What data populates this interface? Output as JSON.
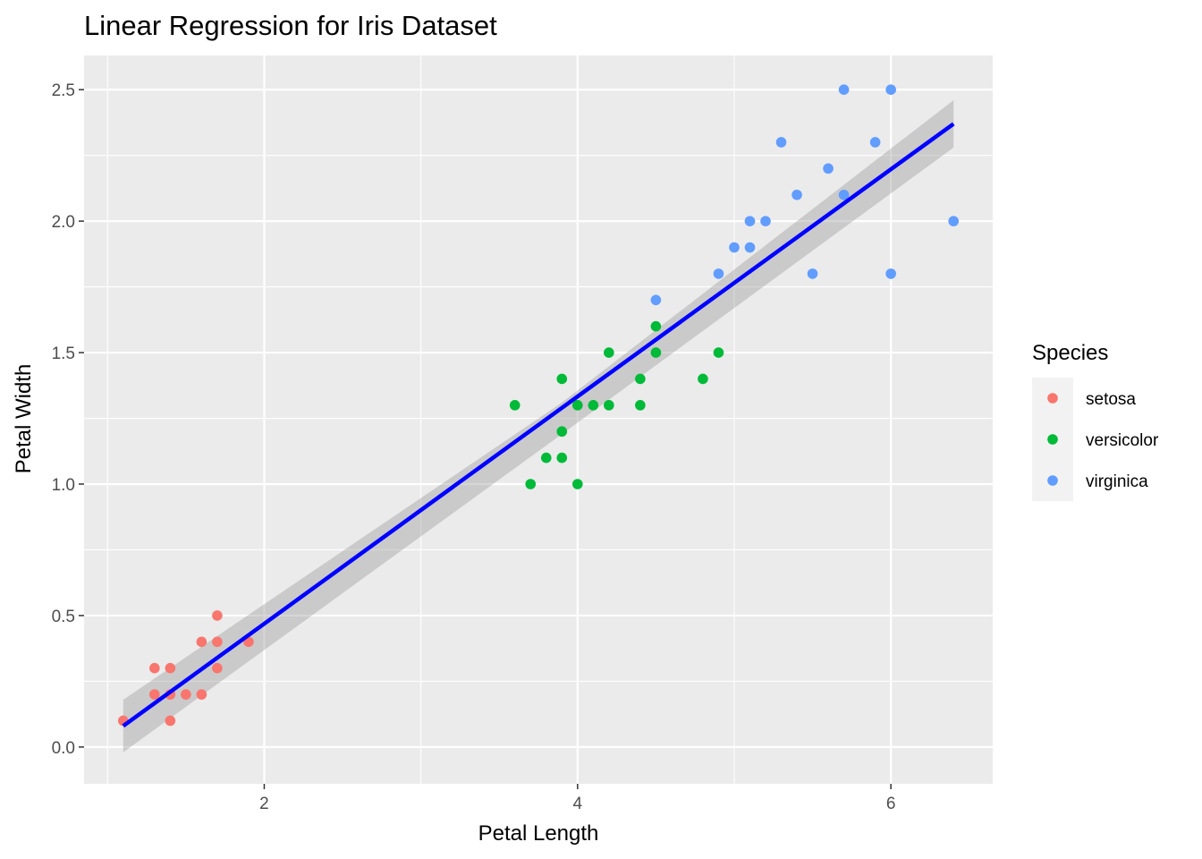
{
  "chart_data": {
    "type": "scatter",
    "title": "Linear Regression for Iris Dataset",
    "xlabel": "Petal Length",
    "ylabel": "Petal Width",
    "xlim": [
      0.85,
      6.65
    ],
    "ylim": [
      -0.14,
      2.63
    ],
    "x_ticks": [
      2,
      4,
      6
    ],
    "x_tick_labels": [
      "2",
      "4",
      "6"
    ],
    "y_ticks": [
      0.0,
      0.5,
      1.0,
      1.5,
      2.0,
      2.5
    ],
    "y_tick_labels": [
      "0.0",
      "0.5",
      "1.0",
      "1.5",
      "2.0",
      "2.5"
    ],
    "x_minor_ticks": [
      1,
      3,
      5
    ],
    "y_minor_ticks": [
      0.25,
      0.75,
      1.25,
      1.75,
      2.25
    ],
    "grid": true,
    "legend": {
      "title": "Species",
      "position": "right"
    },
    "series": [
      {
        "name": "setosa",
        "color": "#F8766D",
        "points": [
          [
            1.1,
            0.1
          ],
          [
            1.3,
            0.3
          ],
          [
            1.3,
            0.2
          ],
          [
            1.4,
            0.3
          ],
          [
            1.4,
            0.2
          ],
          [
            1.4,
            0.1
          ],
          [
            1.5,
            0.2
          ],
          [
            1.6,
            0.4
          ],
          [
            1.6,
            0.2
          ],
          [
            1.7,
            0.5
          ],
          [
            1.7,
            0.4
          ],
          [
            1.7,
            0.3
          ],
          [
            1.9,
            0.4
          ]
        ]
      },
      {
        "name": "versicolor",
        "color": "#00BA38",
        "points": [
          [
            3.6,
            1.3
          ],
          [
            3.7,
            1.0
          ],
          [
            3.8,
            1.1
          ],
          [
            3.9,
            1.4
          ],
          [
            3.9,
            1.2
          ],
          [
            3.9,
            1.1
          ],
          [
            4.0,
            1.3
          ],
          [
            4.0,
            1.0
          ],
          [
            4.1,
            1.3
          ],
          [
            4.2,
            1.5
          ],
          [
            4.2,
            1.3
          ],
          [
            4.4,
            1.4
          ],
          [
            4.4,
            1.3
          ],
          [
            4.5,
            1.6
          ],
          [
            4.5,
            1.5
          ],
          [
            4.8,
            1.4
          ],
          [
            4.9,
            1.5
          ]
        ]
      },
      {
        "name": "virginica",
        "color": "#619CFF",
        "points": [
          [
            4.5,
            1.7
          ],
          [
            4.9,
            1.8
          ],
          [
            5.0,
            1.9
          ],
          [
            5.1,
            2.0
          ],
          [
            5.1,
            1.9
          ],
          [
            5.2,
            2.0
          ],
          [
            5.3,
            2.3
          ],
          [
            5.4,
            2.1
          ],
          [
            5.5,
            1.8
          ],
          [
            5.6,
            2.2
          ],
          [
            5.7,
            2.5
          ],
          [
            5.7,
            2.1
          ],
          [
            5.9,
            2.3
          ],
          [
            6.0,
            2.5
          ],
          [
            6.0,
            1.8
          ],
          [
            6.4,
            2.0
          ]
        ]
      }
    ],
    "regression": {
      "color": "#0000FF",
      "band_color": "#999999",
      "line": [
        [
          1.1,
          0.08
        ],
        [
          6.4,
          2.37
        ]
      ],
      "band_upper": [
        [
          1.1,
          0.18
        ],
        [
          3.9,
          1.31
        ],
        [
          6.4,
          2.46
        ]
      ],
      "band_lower": [
        [
          1.1,
          -0.02
        ],
        [
          3.9,
          1.19
        ],
        [
          6.4,
          2.28
        ]
      ]
    }
  }
}
